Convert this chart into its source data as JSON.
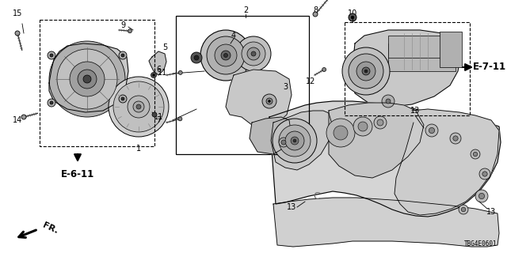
{
  "background": "#ffffff",
  "diagram_code": "TBG4E0601",
  "ref_e6_11": "E-6-11",
  "ref_e7_11": "E-7-11",
  "part_fs": 7.0,
  "lw": 0.7,
  "colors": {
    "part_fill": "#e8e8e8",
    "part_stroke": "#111111",
    "dark_fill": "#555555",
    "mid_fill": "#aaaaaa",
    "light_fill": "#dddddd"
  }
}
